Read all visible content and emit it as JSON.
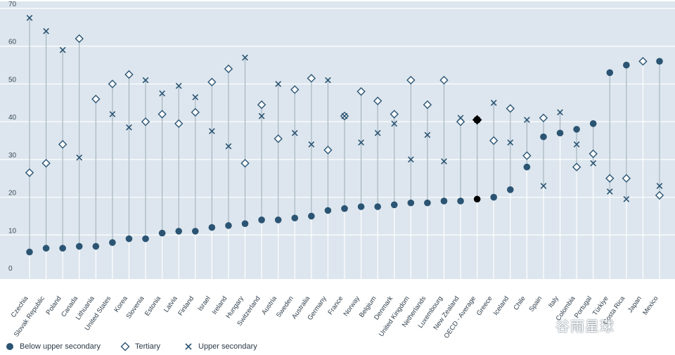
{
  "chart_data": {
    "type": "scatter",
    "categories": [
      "Czechia",
      "Slovak Republic",
      "Poland",
      "Canada",
      "Lithuania",
      "United States",
      "Korea",
      "Slovenia",
      "Estonia",
      "Latvia",
      "Finland",
      "Israel",
      "Ireland",
      "Hungary",
      "Switzerland",
      "Austria",
      "Sweden",
      "Australia",
      "Germany",
      "France",
      "Norway",
      "Belgium",
      "Denmark",
      "United Kingdom",
      "Netherlands",
      "Luxembourg",
      "New Zealand",
      "OECD - Average",
      "Greece",
      "Iceland",
      "Chile",
      "Spain",
      "Italy",
      "Colombia",
      "Portugal",
      "Türkiye",
      "Costa Rica",
      "Japan",
      "Mexico"
    ],
    "series": [
      {
        "name": "Below upper secondary",
        "marker": "circle",
        "values": [
          5.5,
          6.5,
          6.5,
          7,
          7,
          8,
          9,
          9,
          10.5,
          11,
          11,
          12,
          12.5,
          13,
          14,
          14,
          14.5,
          15,
          16.5,
          17,
          17.5,
          17.5,
          18,
          18.5,
          18.5,
          19,
          19,
          19.5,
          20,
          22,
          28,
          36,
          37,
          38,
          39.5,
          53,
          55,
          null,
          56
        ]
      },
      {
        "name": "Tertiary",
        "marker": "diamond",
        "values": [
          26.5,
          29,
          34,
          62,
          46,
          50,
          52.5,
          40,
          42,
          39.5,
          42.5,
          50.5,
          54,
          29,
          44.5,
          35.5,
          48.5,
          51.5,
          32.5,
          41.5,
          48,
          45.5,
          42,
          51,
          44.5,
          51,
          40,
          40.5,
          35,
          43.5,
          31,
          41,
          null,
          28,
          31.5,
          25,
          25,
          56,
          20.5
        ]
      },
      {
        "name": "Upper secondary",
        "marker": "cross",
        "values": [
          67.5,
          64,
          59,
          30.5,
          null,
          42,
          38.5,
          51,
          47.5,
          49.5,
          46.5,
          37.5,
          33.5,
          57,
          41.5,
          50,
          37,
          34,
          51,
          41.5,
          34.5,
          37,
          39.5,
          30,
          36.5,
          29.5,
          41,
          40.5,
          45,
          34.5,
          40.5,
          23,
          42.5,
          34,
          29,
          21.5,
          19.5,
          null,
          23
        ]
      }
    ],
    "ylim": [
      0,
      70
    ],
    "yticks": [
      0,
      10,
      20,
      30,
      40,
      50,
      60,
      70
    ],
    "highlight_category": "OECD - Average",
    "legend_position": "bottom-left",
    "grid": true,
    "xlabel": "",
    "ylabel": ""
  },
  "legend": {
    "below_label": "Below upper secondary",
    "tertiary_label": "Tertiary",
    "upper_label": "Upper secondary"
  },
  "watermark": "谷雨星球",
  "colors": {
    "plot_background": "#dde6ee",
    "gridline": "#ffffff",
    "marker": "#2b5473",
    "highlight": "#000000",
    "connector": "#a3b2be"
  }
}
